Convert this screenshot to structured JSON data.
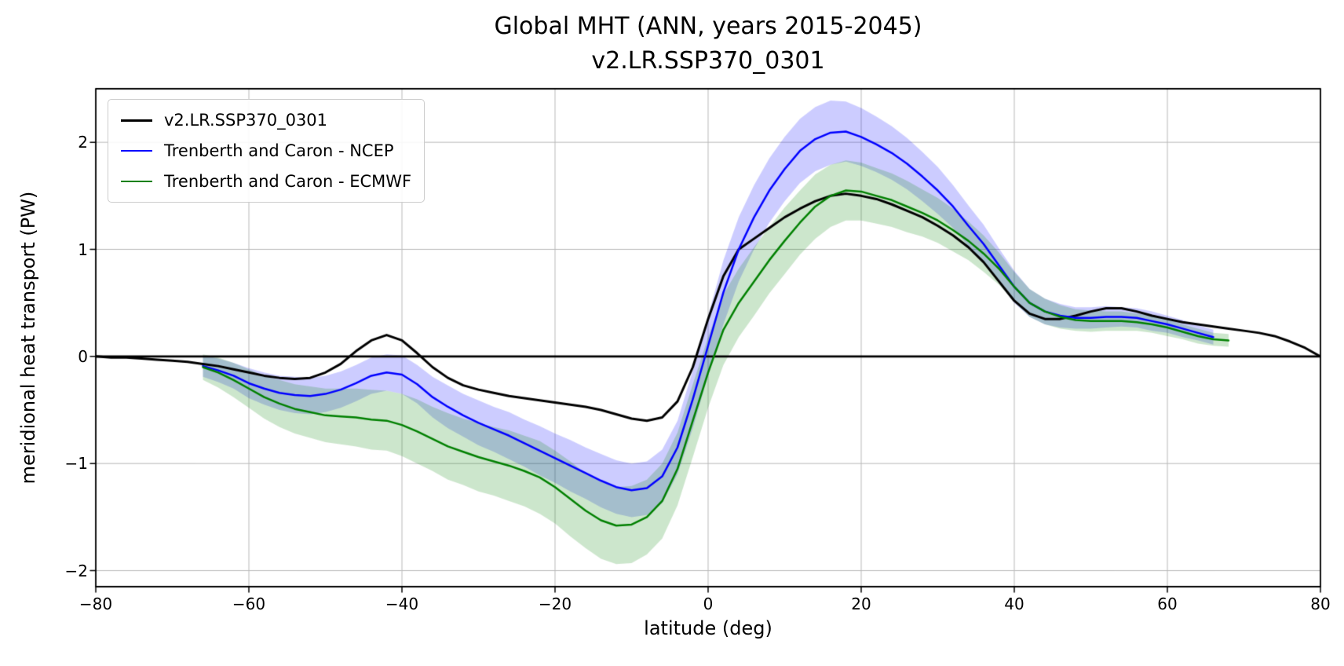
{
  "chart_data": {
    "type": "line",
    "title": "Global MHT (ANN, years 2015-2045)\nv2.LR.SSP370_0301",
    "xlabel": "latitude (deg)",
    "ylabel": "meridional heat transport (PW)",
    "xlim": [
      -80,
      80
    ],
    "ylim": [
      -2.15,
      2.5
    ],
    "xticks": [
      -80,
      -60,
      -40,
      -20,
      0,
      20,
      40,
      60,
      80
    ],
    "yticks": [
      -2,
      -1,
      0,
      1,
      2
    ],
    "grid": true,
    "grid_color": "#b8b8b8",
    "zero_line": true,
    "zero_line_color": "#000000",
    "legend_position": "upper left",
    "series": [
      {
        "name": "v2.LR.SSP370_0301",
        "color": "#000000",
        "line_width": 3,
        "x": [
          -80,
          -78,
          -76,
          -74,
          -72,
          -70,
          -68,
          -66,
          -64,
          -62,
          -60,
          -58,
          -56,
          -54,
          -52,
          -50,
          -48,
          -46,
          -44,
          -42,
          -40,
          -38,
          -36,
          -34,
          -32,
          -30,
          -28,
          -26,
          -24,
          -22,
          -20,
          -18,
          -16,
          -14,
          -12,
          -10,
          -8,
          -6,
          -4,
          -2,
          0,
          2,
          4,
          6,
          8,
          10,
          12,
          14,
          16,
          18,
          20,
          22,
          24,
          26,
          28,
          30,
          32,
          34,
          36,
          38,
          40,
          42,
          44,
          46,
          48,
          50,
          52,
          54,
          56,
          58,
          60,
          62,
          64,
          66,
          68,
          70,
          72,
          74,
          76,
          78,
          80
        ],
        "y": [
          0.0,
          -0.01,
          -0.01,
          -0.02,
          -0.03,
          -0.04,
          -0.05,
          -0.07,
          -0.09,
          -0.12,
          -0.15,
          -0.18,
          -0.2,
          -0.21,
          -0.2,
          -0.15,
          -0.07,
          0.05,
          0.15,
          0.2,
          0.15,
          0.03,
          -0.1,
          -0.2,
          -0.27,
          -0.31,
          -0.34,
          -0.37,
          -0.39,
          -0.41,
          -0.43,
          -0.45,
          -0.47,
          -0.5,
          -0.54,
          -0.58,
          -0.6,
          -0.57,
          -0.42,
          -0.1,
          0.35,
          0.75,
          1.0,
          1.1,
          1.2,
          1.3,
          1.38,
          1.45,
          1.5,
          1.52,
          1.5,
          1.47,
          1.42,
          1.36,
          1.3,
          1.22,
          1.13,
          1.02,
          0.88,
          0.7,
          0.52,
          0.4,
          0.35,
          0.35,
          0.38,
          0.42,
          0.45,
          0.45,
          0.42,
          0.38,
          0.35,
          0.32,
          0.3,
          0.28,
          0.26,
          0.24,
          0.22,
          0.19,
          0.14,
          0.08,
          0.0
        ]
      },
      {
        "name": "Trenberth and Caron - NCEP",
        "color": "#0000ff",
        "line_width": 2.5,
        "band_alpha": 0.2,
        "x": [
          -66,
          -64,
          -62,
          -60,
          -58,
          -56,
          -54,
          -52,
          -50,
          -48,
          -46,
          -44,
          -42,
          -40,
          -38,
          -36,
          -34,
          -32,
          -30,
          -28,
          -26,
          -24,
          -22,
          -20,
          -18,
          -16,
          -14,
          -12,
          -10,
          -8,
          -6,
          -4,
          -2,
          0,
          2,
          4,
          6,
          8,
          10,
          12,
          14,
          16,
          18,
          20,
          22,
          24,
          26,
          28,
          30,
          32,
          34,
          36,
          38,
          40,
          42,
          44,
          46,
          48,
          50,
          52,
          54,
          56,
          58,
          60,
          62,
          64,
          66
        ],
        "y": [
          -0.09,
          -0.13,
          -0.18,
          -0.25,
          -0.3,
          -0.34,
          -0.36,
          -0.37,
          -0.35,
          -0.31,
          -0.25,
          -0.18,
          -0.15,
          -0.17,
          -0.26,
          -0.38,
          -0.47,
          -0.55,
          -0.62,
          -0.68,
          -0.74,
          -0.81,
          -0.88,
          -0.95,
          -1.02,
          -1.09,
          -1.16,
          -1.22,
          -1.25,
          -1.23,
          -1.12,
          -0.85,
          -0.4,
          0.1,
          0.6,
          1.0,
          1.3,
          1.55,
          1.75,
          1.92,
          2.03,
          2.09,
          2.1,
          2.05,
          1.98,
          1.9,
          1.8,
          1.68,
          1.55,
          1.4,
          1.22,
          1.05,
          0.85,
          0.65,
          0.5,
          0.42,
          0.38,
          0.36,
          0.36,
          0.37,
          0.37,
          0.36,
          0.33,
          0.3,
          0.26,
          0.22,
          0.18
        ],
        "band_delta": [
          0.1,
          0.11,
          0.12,
          0.14,
          0.15,
          0.16,
          0.17,
          0.17,
          0.17,
          0.17,
          0.17,
          0.17,
          0.17,
          0.18,
          0.18,
          0.19,
          0.2,
          0.2,
          0.21,
          0.21,
          0.22,
          0.22,
          0.23,
          0.23,
          0.24,
          0.24,
          0.25,
          0.25,
          0.25,
          0.25,
          0.25,
          0.25,
          0.27,
          0.28,
          0.3,
          0.3,
          0.3,
          0.3,
          0.3,
          0.3,
          0.3,
          0.3,
          0.28,
          0.27,
          0.26,
          0.25,
          0.24,
          0.23,
          0.22,
          0.2,
          0.19,
          0.18,
          0.16,
          0.15,
          0.13,
          0.12,
          0.11,
          0.1,
          0.1,
          0.1,
          0.09,
          0.09,
          0.09,
          0.08,
          0.08,
          0.07,
          0.07
        ]
      },
      {
        "name": "Trenberth and Caron - ECMWF",
        "color": "#008000",
        "line_width": 2.5,
        "band_alpha": 0.2,
        "x": [
          -66,
          -64,
          -62,
          -60,
          -58,
          -56,
          -54,
          -52,
          -50,
          -48,
          -46,
          -44,
          -42,
          -40,
          -38,
          -36,
          -34,
          -32,
          -30,
          -28,
          -26,
          -24,
          -22,
          -20,
          -18,
          -16,
          -14,
          -12,
          -10,
          -8,
          -6,
          -4,
          -2,
          0,
          2,
          4,
          6,
          8,
          10,
          12,
          14,
          16,
          18,
          20,
          22,
          24,
          26,
          28,
          30,
          32,
          34,
          36,
          38,
          40,
          42,
          44,
          46,
          48,
          50,
          52,
          54,
          56,
          58,
          60,
          62,
          64,
          66,
          68
        ],
        "y": [
          -0.1,
          -0.15,
          -0.22,
          -0.3,
          -0.38,
          -0.44,
          -0.49,
          -0.52,
          -0.55,
          -0.56,
          -0.57,
          -0.59,
          -0.6,
          -0.64,
          -0.7,
          -0.77,
          -0.84,
          -0.89,
          -0.94,
          -0.98,
          -1.02,
          -1.07,
          -1.13,
          -1.22,
          -1.33,
          -1.44,
          -1.53,
          -1.58,
          -1.57,
          -1.5,
          -1.35,
          -1.05,
          -0.6,
          -0.15,
          0.25,
          0.5,
          0.7,
          0.9,
          1.08,
          1.25,
          1.4,
          1.5,
          1.55,
          1.54,
          1.5,
          1.46,
          1.4,
          1.34,
          1.27,
          1.18,
          1.08,
          0.96,
          0.82,
          0.65,
          0.5,
          0.42,
          0.37,
          0.34,
          0.33,
          0.33,
          0.33,
          0.32,
          0.3,
          0.27,
          0.23,
          0.19,
          0.16,
          0.15
        ],
        "band_delta": [
          0.12,
          0.14,
          0.16,
          0.18,
          0.2,
          0.22,
          0.23,
          0.24,
          0.25,
          0.26,
          0.27,
          0.28,
          0.28,
          0.29,
          0.3,
          0.3,
          0.31,
          0.31,
          0.32,
          0.32,
          0.33,
          0.33,
          0.34,
          0.34,
          0.35,
          0.35,
          0.36,
          0.36,
          0.36,
          0.35,
          0.35,
          0.34,
          0.34,
          0.33,
          0.33,
          0.32,
          0.32,
          0.31,
          0.31,
          0.3,
          0.3,
          0.29,
          0.28,
          0.27,
          0.26,
          0.25,
          0.24,
          0.22,
          0.21,
          0.2,
          0.18,
          0.17,
          0.15,
          0.14,
          0.13,
          0.12,
          0.11,
          0.1,
          0.1,
          0.09,
          0.09,
          0.08,
          0.08,
          0.08,
          0.07,
          0.07,
          0.06,
          0.06
        ]
      }
    ]
  }
}
